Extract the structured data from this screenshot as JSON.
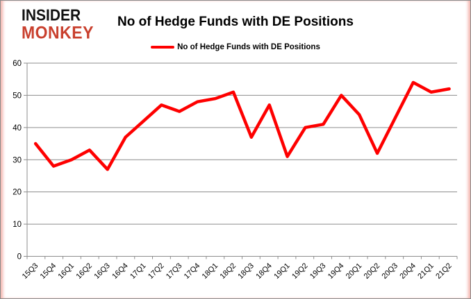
{
  "logo": {
    "line1": "INSIDER",
    "line2": "MONKEY"
  },
  "header": {
    "title": "No of Hedge Funds with DE Positions"
  },
  "legend": {
    "label": "No of Hedge Funds with DE Positions"
  },
  "chart_data": {
    "type": "line",
    "title": "No of Hedge Funds with DE Positions",
    "categories": [
      "15Q3",
      "15Q4",
      "16Q1",
      "16Q2",
      "16Q3",
      "16Q4",
      "17Q1",
      "17Q2",
      "17Q3",
      "17Q4",
      "18Q1",
      "18Q2",
      "18Q3",
      "18Q4",
      "19Q1",
      "19Q2",
      "19Q3",
      "19Q4",
      "20Q1",
      "20Q2",
      "20Q3",
      "20Q4",
      "21Q1",
      "21Q2"
    ],
    "series": [
      {
        "name": "No of Hedge Funds with DE Positions",
        "color": "#fe0000",
        "values": [
          35,
          28,
          30,
          33,
          27,
          37,
          42,
          47,
          45,
          48,
          49,
          51,
          37,
          47,
          31,
          40,
          41,
          50,
          44,
          32,
          43,
          54,
          51,
          52
        ]
      }
    ],
    "xlabel": "",
    "ylabel": "",
    "ylim": [
      0,
      60
    ],
    "yticks": [
      0,
      10,
      20,
      30,
      40,
      50,
      60
    ],
    "grid": "horizontal",
    "legend_position": "top-center"
  },
  "colors": {
    "line": "#fe0000",
    "grid": "#8c8c8c",
    "axis": "#8c8c8c",
    "tick_text": "#000000",
    "logo_black": "#111111",
    "logo_red": "#c9402e",
    "frame_border": "#8a8a8a",
    "edge_glow": "#f3b2ab"
  }
}
